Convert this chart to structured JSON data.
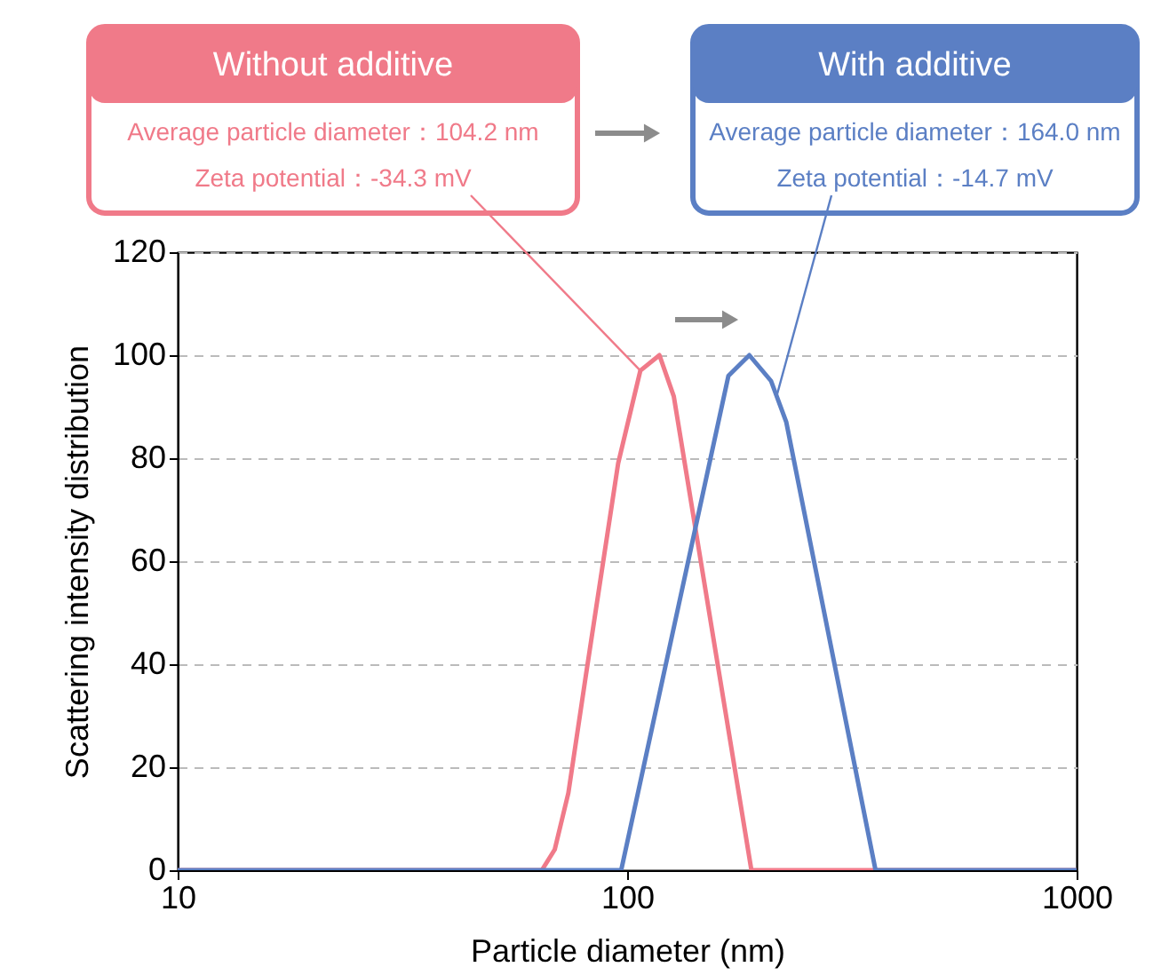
{
  "chart_data": {
    "type": "line",
    "xlabel": "Particle diameter (nm)",
    "ylabel": "Scattering intensity distribution",
    "series": [
      {
        "name": "Without additive",
        "color": "#f07a89",
        "x": [
          10,
          64.6,
          69,
          74,
          81,
          95.5,
          107,
          118,
          127,
          189,
          357,
          1000
        ],
        "values": [
          0,
          0,
          4,
          15,
          38,
          79,
          97,
          100,
          92,
          0,
          0,
          0
        ]
      },
      {
        "name": "With additive",
        "color": "#5b7fc4",
        "x": [
          10,
          97,
          168,
          187,
          209,
          226,
          357,
          1000
        ],
        "values": [
          0,
          0,
          96,
          100,
          95,
          87,
          0,
          0
        ]
      }
    ],
    "annotations": [
      "Average particle diameter：104.2 nm",
      {
        "text": "Zeta potential：-34.3 mV",
        "x": 107,
        "y": 97
      },
      "Average particle diameter：164.0 nm",
      {
        "text": "Zeta potential：-14.7 mV",
        "x": 215,
        "y": 92
      }
    ],
    "log": "x",
    "xlim": [
      10,
      1000
    ],
    "xticks": [
      10,
      100,
      1000
    ],
    "ylim": [
      0,
      120
    ],
    "yticks": [
      0,
      20,
      40,
      60,
      80,
      100,
      120
    ],
    "grid": "y",
    "legend": false,
    "marker": "none",
    "line_style": "solid"
  }
}
